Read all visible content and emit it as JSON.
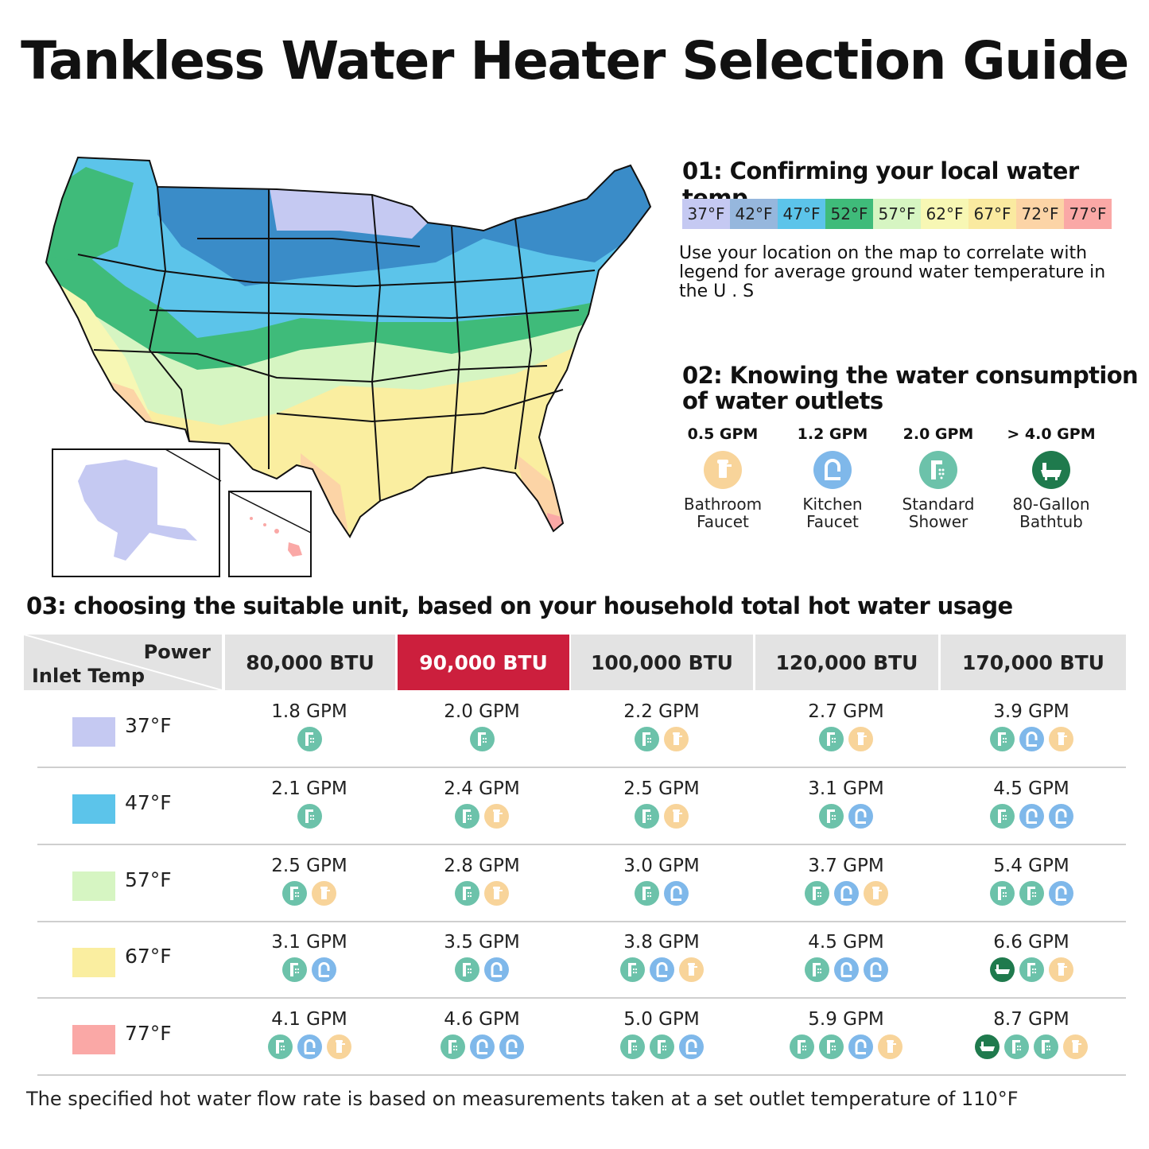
{
  "title": "Tankless Water Heater Selection Guide",
  "step1": {
    "title": "01:  Confirming your local water temp",
    "legend": [
      {
        "label": "37°F",
        "color": "#c5c9f2"
      },
      {
        "label": "42°F",
        "color": "#96b7dd"
      },
      {
        "label": "47°F",
        "color": "#5cc4ea"
      },
      {
        "label": "52°F",
        "color": "#3fbb7a"
      },
      {
        "label": "57°F",
        "color": "#d6f5c2"
      },
      {
        "label": "62°F",
        "color": "#f7f7b4"
      },
      {
        "label": "67°F",
        "color": "#faeaa0"
      },
      {
        "label": "72°F",
        "color": "#fcd4a6"
      },
      {
        "label": "77°F",
        "color": "#faa8a6"
      }
    ],
    "description": "Use your location on the map to correlate with legend for average ground water temperature in the U . S"
  },
  "step2": {
    "title_line1": "02:  Knowing the water consumption",
    "title_line2": "of water outlets",
    "outlets": [
      {
        "gpm": "0.5 GPM",
        "label1": "Bathroom",
        "label2": "Faucet",
        "icon": "bathroom-faucet-icon",
        "color": "#f8d49a"
      },
      {
        "gpm": "1.2 GPM",
        "label1": "Kitchen",
        "label2": "Faucet",
        "icon": "kitchen-faucet-icon",
        "color": "#7fb8ea"
      },
      {
        "gpm": "2.0 GPM",
        "label1": "Standard",
        "label2": "Shower",
        "icon": "shower-icon",
        "color": "#6cc2aa"
      },
      {
        "gpm": "> 4.0 GPM",
        "label1": "80-Gallon",
        "label2": "Bathtub",
        "icon": "bathtub-icon",
        "color": "#1f7a4d"
      }
    ]
  },
  "step3": {
    "title": "03:  choosing the suitable unit, based on your household total hot water usage",
    "corner_power": "Power",
    "corner_inlet": "Inlet Temp",
    "columns": [
      "80,000 BTU",
      "90,000 BTU",
      "100,000 BTU",
      "120,000 BTU",
      "170,000 BTU"
    ],
    "highlight_color": "#cc1f3d",
    "rows": [
      {
        "temp": "37°F",
        "color": "#c5c9f2",
        "cells": [
          {
            "gpm": "1.8 GPM",
            "icons": [
              "S"
            ]
          },
          {
            "gpm": "2.0 GPM",
            "icons": [
              "S"
            ]
          },
          {
            "gpm": "2.2 GPM",
            "icons": [
              "S",
              "B"
            ]
          },
          {
            "gpm": "2.7 GPM",
            "icons": [
              "S",
              "B"
            ]
          },
          {
            "gpm": "3.9 GPM",
            "icons": [
              "S",
              "K",
              "B"
            ]
          }
        ]
      },
      {
        "temp": "47°F",
        "color": "#5cc4ea",
        "cells": [
          {
            "gpm": "2.1 GPM",
            "icons": [
              "S"
            ]
          },
          {
            "gpm": "2.4 GPM",
            "icons": [
              "S",
              "B"
            ]
          },
          {
            "gpm": "2.5 GPM",
            "icons": [
              "S",
              "B"
            ]
          },
          {
            "gpm": "3.1 GPM",
            "icons": [
              "S",
              "K"
            ]
          },
          {
            "gpm": "4.5 GPM",
            "icons": [
              "S",
              "K",
              "K"
            ]
          }
        ]
      },
      {
        "temp": "57°F",
        "color": "#d6f5c2",
        "cells": [
          {
            "gpm": "2.5 GPM",
            "icons": [
              "S",
              "B"
            ]
          },
          {
            "gpm": "2.8 GPM",
            "icons": [
              "S",
              "B"
            ]
          },
          {
            "gpm": "3.0 GPM",
            "icons": [
              "S",
              "K"
            ]
          },
          {
            "gpm": "3.7 GPM",
            "icons": [
              "S",
              "K",
              "B"
            ]
          },
          {
            "gpm": "5.4 GPM",
            "icons": [
              "S",
              "S",
              "K"
            ]
          }
        ]
      },
      {
        "temp": "67°F",
        "color": "#faeea0",
        "cells": [
          {
            "gpm": "3.1 GPM",
            "icons": [
              "S",
              "K"
            ]
          },
          {
            "gpm": "3.5 GPM",
            "icons": [
              "S",
              "K"
            ]
          },
          {
            "gpm": "3.8 GPM",
            "icons": [
              "S",
              "K",
              "B"
            ]
          },
          {
            "gpm": "4.5 GPM",
            "icons": [
              "S",
              "K",
              "K"
            ]
          },
          {
            "gpm": "6.6 GPM",
            "icons": [
              "T",
              "S",
              "B"
            ]
          }
        ]
      },
      {
        "temp": "77°F",
        "color": "#faa8a6",
        "cells": [
          {
            "gpm": "4.1 GPM",
            "icons": [
              "S",
              "K",
              "B"
            ]
          },
          {
            "gpm": "4.6 GPM",
            "icons": [
              "S",
              "K",
              "K"
            ]
          },
          {
            "gpm": "5.0 GPM",
            "icons": [
              "S",
              "S",
              "K"
            ]
          },
          {
            "gpm": "5.9 GPM",
            "icons": [
              "S",
              "S",
              "K",
              "B"
            ]
          },
          {
            "gpm": "8.7 GPM",
            "icons": [
              "T",
              "S",
              "S",
              "B"
            ]
          }
        ]
      }
    ]
  },
  "footnote": "The specified hot water flow rate is based on measurements taken at a set outlet temperature of 110°F"
}
